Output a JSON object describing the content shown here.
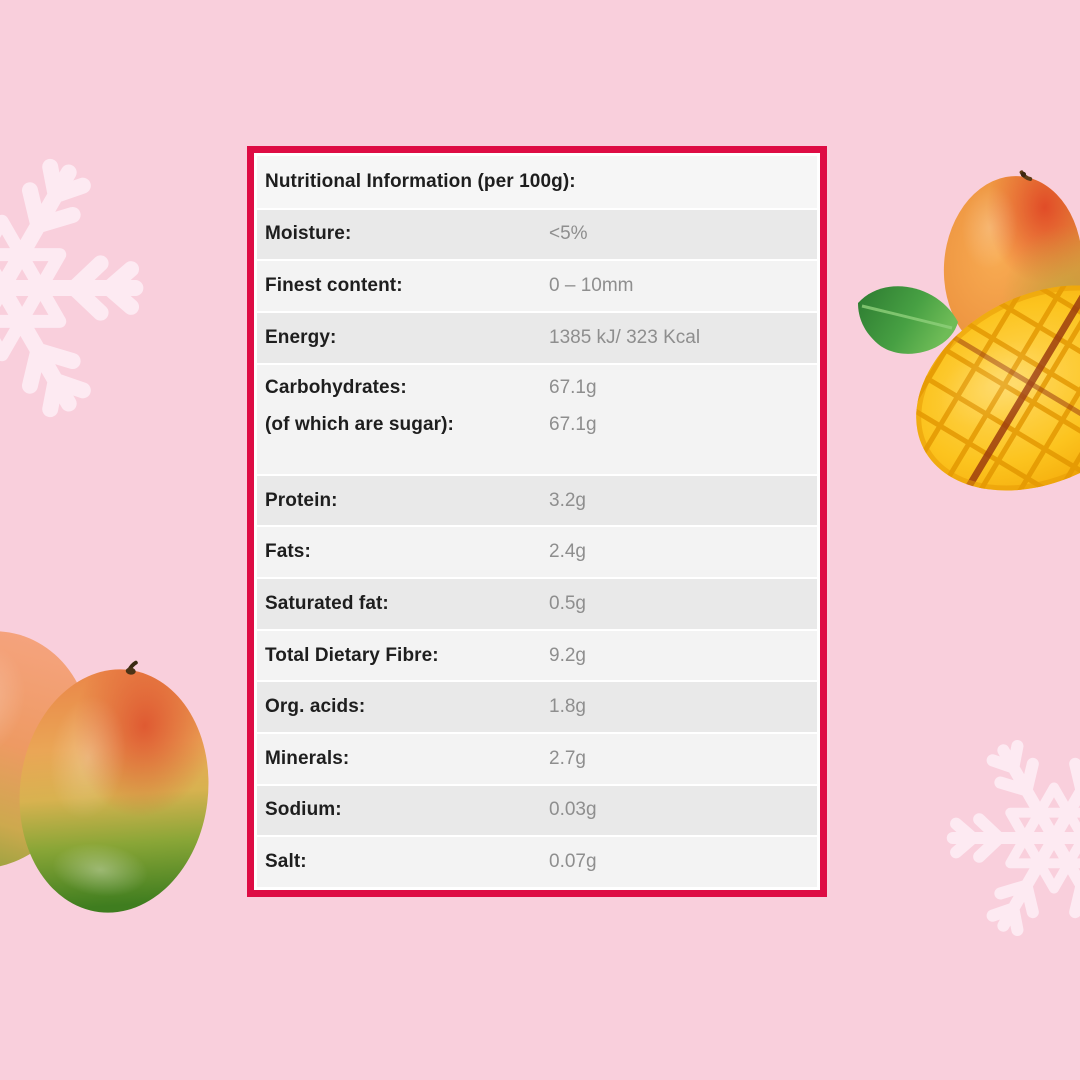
{
  "page": {
    "background_color": "#f9cfdc"
  },
  "table": {
    "border_color": "#de0c44",
    "title": "Nutritional Information (per 100g):",
    "row_colors": {
      "light": "#f3f3f3",
      "dark": "#e9e9e9"
    },
    "rows": [
      {
        "label": "Moisture:",
        "value": "<5%"
      },
      {
        "label": "Finest content:",
        "value": "0 – 10mm"
      },
      {
        "label": "Energy:",
        "value": "1385 kJ/ 323 Kcal"
      },
      {
        "label": "Carbohydrates:",
        "value": "67.1g",
        "sublabel": "(of which are sugar):",
        "subvalue": "67.1g"
      },
      {
        "label": "Protein:",
        "value": "3.2g"
      },
      {
        "label": "Fats:",
        "value": "2.4g"
      },
      {
        "label": "Saturated fat:",
        "value": "0.5g"
      },
      {
        "label": "Total Dietary Fibre:",
        "value": "9.2g"
      },
      {
        "label": "Org. acids:",
        "value": "1.8g"
      },
      {
        "label": "Minerals:",
        "value": "2.7g"
      },
      {
        "label": "Sodium:",
        "value": "0.03g"
      },
      {
        "label": "Salt:",
        "value": "0.07g"
      }
    ]
  },
  "decorations": {
    "snowflake_color": "#fdeaf2",
    "items": [
      "snowflake-top-left",
      "snowflake-bottom-right",
      "whole-mango-top-right",
      "mango-leaf-top-right",
      "cut-mango-top-right",
      "rear-mango-bottom-left",
      "front-mango-bottom-left"
    ]
  }
}
